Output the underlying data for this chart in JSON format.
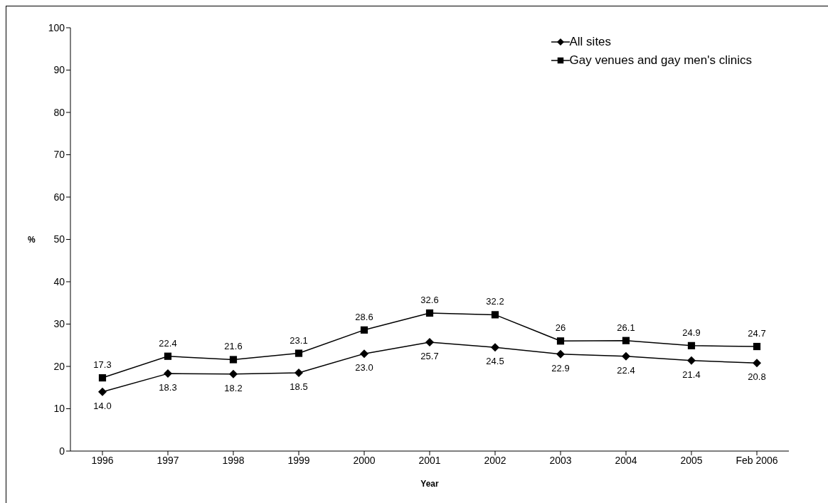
{
  "chart_data": {
    "type": "line",
    "xlabel": "Year",
    "ylabel": "%",
    "categories": [
      "1996",
      "1997",
      "1998",
      "1999",
      "2000",
      "2001",
      "2002",
      "2003",
      "2004",
      "2005",
      "Feb 2006"
    ],
    "series": [
      {
        "name": "All sites",
        "color": "#000000",
        "marker": "diamond",
        "values": [
          14.0,
          18.3,
          18.2,
          18.5,
          23.0,
          25.7,
          24.5,
          22.9,
          22.4,
          21.4,
          20.8
        ],
        "value_labels": [
          "14.0",
          "18.3",
          "18.2",
          "18.5",
          "23.0",
          "25.7",
          "24.5",
          "22.9",
          "22.4",
          "21.4",
          "20.8"
        ]
      },
      {
        "name": "Gay venues and gay men's clinics",
        "color": "#000000",
        "marker": "square",
        "values": [
          17.3,
          22.4,
          21.6,
          23.1,
          28.6,
          32.6,
          32.2,
          26,
          26.1,
          24.9,
          24.7
        ],
        "value_labels": [
          "17.3",
          "22.4",
          "21.6",
          "23.1",
          "28.6",
          "32.6",
          "32.2",
          "26",
          "26.1",
          "24.9",
          "24.7"
        ]
      }
    ],
    "ylim": [
      0,
      100
    ],
    "yticks": [
      0,
      10,
      20,
      30,
      40,
      50,
      60,
      70,
      80,
      90,
      100
    ],
    "grid": false,
    "legend": "top right",
    "line_style": "solid"
  }
}
